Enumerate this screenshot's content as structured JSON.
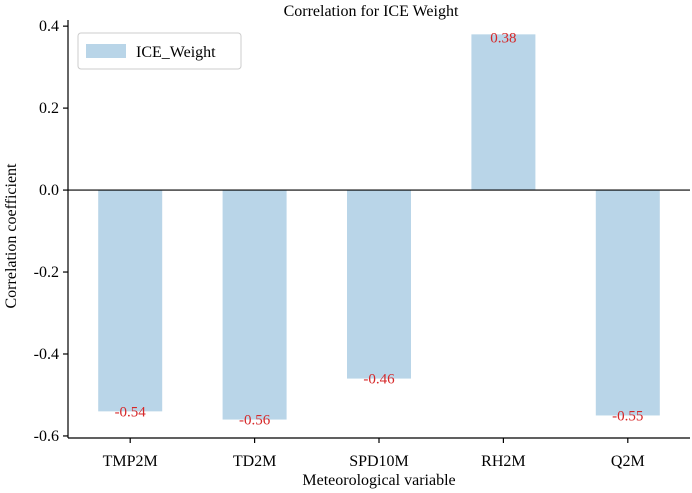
{
  "chart_data": {
    "type": "bar",
    "title": "Correlation for ICE Weight",
    "xlabel": "Meteorological variable",
    "ylabel": "Correlation coefficient",
    "categories": [
      "TMP2M",
      "TD2M",
      "SPD10M",
      "RH2M",
      "Q2M"
    ],
    "series": [
      {
        "name": "ICE_Weight",
        "values": [
          -0.54,
          -0.56,
          -0.46,
          0.38,
          -0.55
        ]
      }
    ],
    "data_labels": [
      "-0.54",
      "-0.56",
      "-0.46",
      "0.38",
      "-0.55"
    ],
    "ylim": [
      -0.6,
      0.4
    ],
    "yticks": [
      -0.6,
      -0.4,
      -0.2,
      0.0,
      0.2,
      0.4
    ],
    "ytick_labels": [
      "-0.6",
      "-0.4",
      "-0.2",
      "0.0",
      "0.2",
      "0.4"
    ],
    "legend_position": "top-left",
    "grid": false,
    "colors": {
      "bar": "#b9d5e8",
      "label": "#d62728",
      "axis": "#000000"
    }
  }
}
